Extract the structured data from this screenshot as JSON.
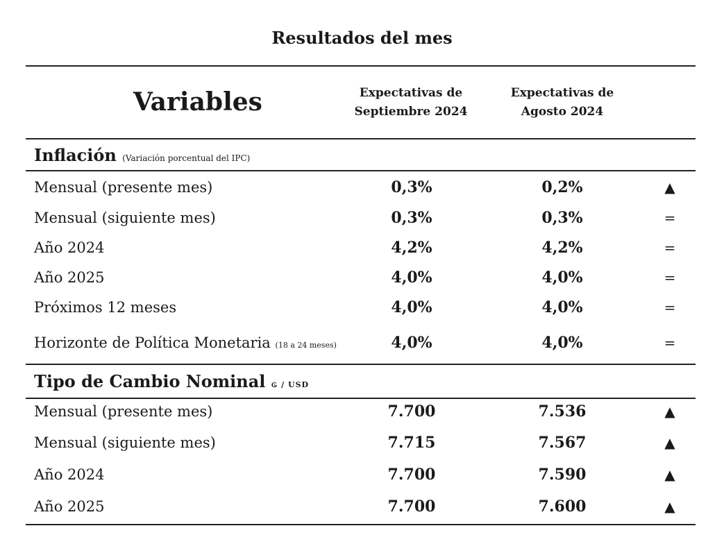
{
  "title": "Resultados del mes",
  "header": {
    "variables": "Variables",
    "col1_line1": "Expectativas de",
    "col1_line2": "Septiembre 2024",
    "col2_line1": "Expectativas de",
    "col2_line2": "Agosto 2024"
  },
  "inflacion": {
    "title": "Inflación",
    "subtitle": "(Variación porcentual del IPC)",
    "rows": [
      {
        "label": "Mensual (presente mes)",
        "sept": "0,3%",
        "ago": "0,2%",
        "indicator": "▲"
      },
      {
        "label": "Mensual (siguiente mes)",
        "sept": "0,3%",
        "ago": "0,3%",
        "indicator": "="
      },
      {
        "label": "Año 2024",
        "sept": "4,2%",
        "ago": "4,2%",
        "indicator": "="
      },
      {
        "label": "Año 2025",
        "sept": "4,0%",
        "ago": "4,0%",
        "indicator": "="
      },
      {
        "label": "Próximos 12 meses",
        "sept": "4,0%",
        "ago": "4,0%",
        "indicator": "="
      },
      {
        "label": "Horizonte de Política Monetaria",
        "label_small": "(18 a 24 meses)",
        "sept": "4,0%",
        "ago": "4,0%",
        "indicator": "="
      }
    ]
  },
  "cambio": {
    "title": "Tipo de Cambio Nominal",
    "unit": "₲ / USD",
    "rows": [
      {
        "label": "Mensual (presente mes)",
        "sept": "7.700",
        "ago": "7.536",
        "indicator": "▲"
      },
      {
        "label": "Mensual (siguiente mes)",
        "sept": "7.715",
        "ago": "7.567",
        "indicator": "▲"
      },
      {
        "label": "Año 2024",
        "sept": "7.700",
        "ago": "7.590",
        "indicator": "▲"
      },
      {
        "label": "Año 2025",
        "sept": "7.700",
        "ago": "7.600",
        "indicator": "▲"
      }
    ]
  }
}
